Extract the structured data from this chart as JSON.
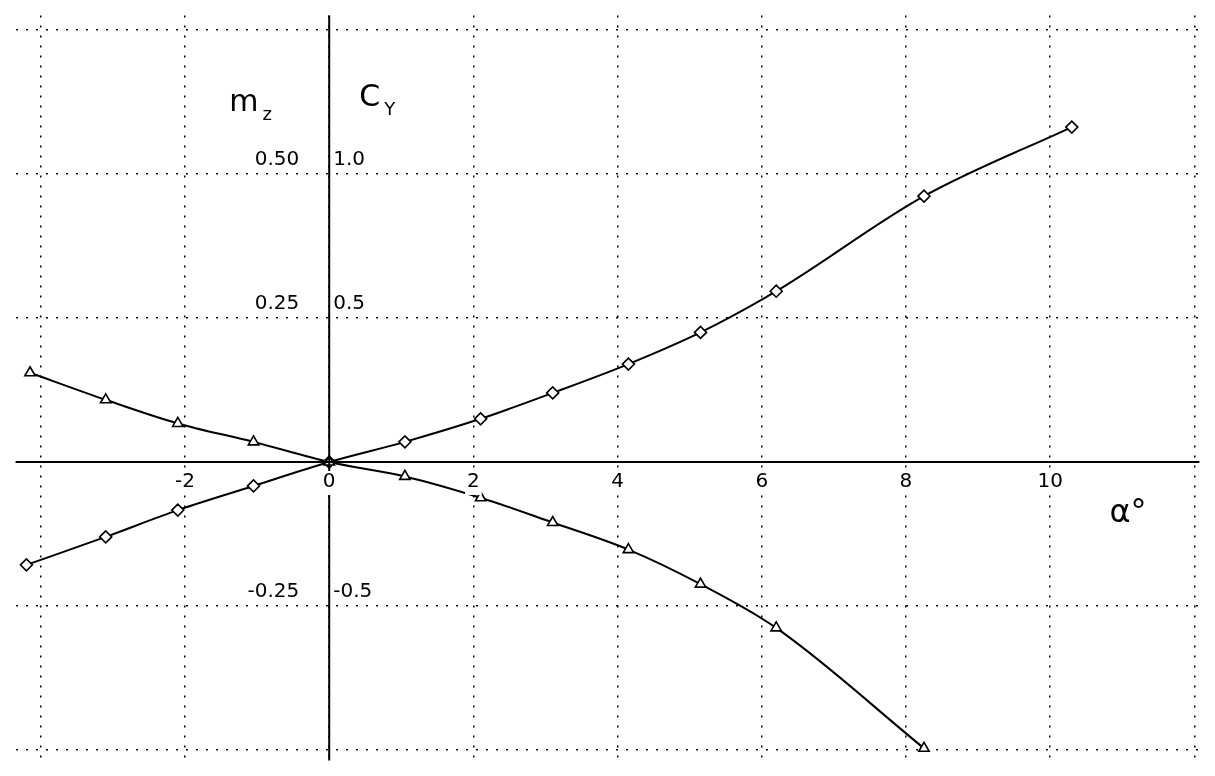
{
  "chart_data": {
    "type": "line",
    "xlabel": "α°",
    "ylabel": "m$_{z}$",
    "y2label": "C$_{Y}$",
    "xlim": [
      -4.35,
      12.07
    ],
    "xticks": [
      {
        "value": -4,
        "label": null
      },
      -2,
      0,
      2,
      4,
      6,
      8,
      10,
      {
        "value": 12,
        "label": null
      }
    ],
    "ylim": [
      -0.518,
      0.775
    ],
    "yticks": [
      {
        "value": -0.5,
        "label": null
      },
      {
        "value": -0.25,
        "label": "-0.25"
      },
      {
        "value": 0,
        "label": null
      },
      {
        "value": 0.25,
        "label": "0.25"
      },
      {
        "value": 0.5,
        "label": "0.50"
      },
      {
        "value": 0.75,
        "label": null
      }
    ],
    "y2lim": [
      -1.036,
      1.55
    ],
    "y2ticks": [
      {
        "value": -0.5,
        "label": "-0.5"
      },
      {
        "value": 0.5,
        "label": "0.5"
      },
      {
        "value": 1.0,
        "label": "1.0"
      }
    ],
    "grid": true,
    "legend": false,
    "series": [
      {
        "color": "#000000",
        "marker": "triangle",
        "x": [
          -4.15,
          -3.1,
          -2.1,
          -1.05,
          0,
          1.05,
          2.1,
          3.1,
          4.15,
          5.15,
          6.2,
          8.25
        ],
        "values": [
          0.155,
          0.108,
          0.067,
          0.035,
          0,
          -0.025,
          -0.062,
          -0.105,
          -0.152,
          -0.212,
          -0.288,
          -0.497
        ]
      },
      {
        "color": "#000000",
        "marker": "diamond",
        "axis": "y2",
        "x": [
          -4.2,
          -3.1,
          -2.1,
          -1.05,
          0,
          1.05,
          2.1,
          3.1,
          4.15,
          5.15,
          6.2,
          8.25,
          10.3
        ],
        "values": [
          -0.357,
          -0.26,
          -0.167,
          -0.083,
          0,
          0.07,
          0.15,
          0.24,
          0.34,
          0.45,
          0.593,
          0.923,
          1.163
        ]
      }
    ]
  }
}
